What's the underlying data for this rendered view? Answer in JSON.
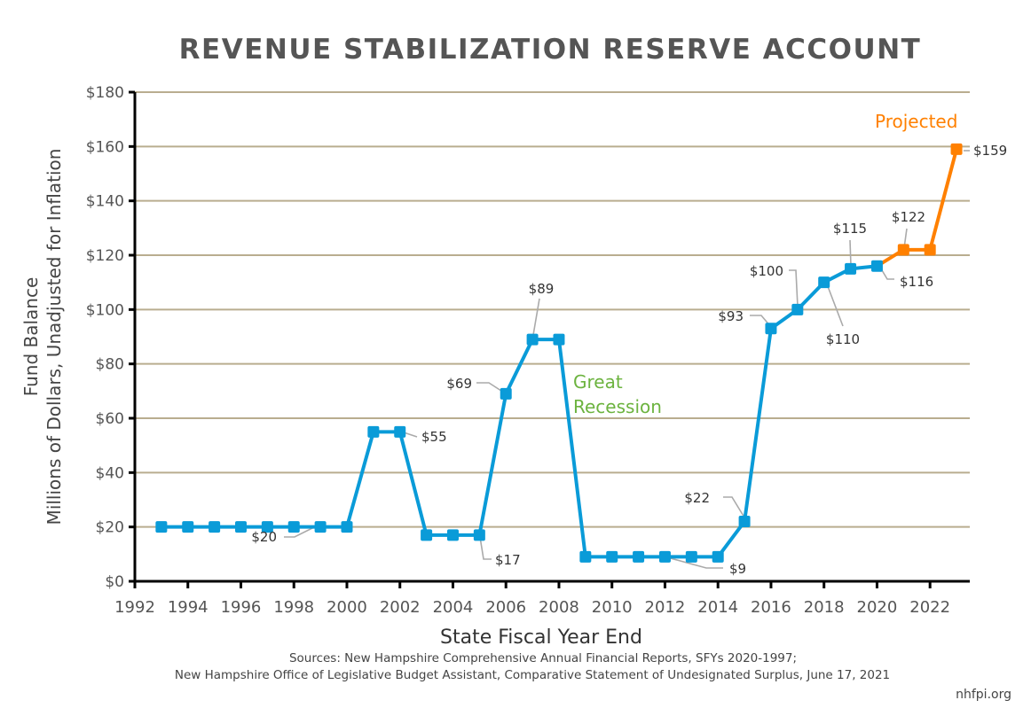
{
  "chart_data": {
    "type": "line",
    "title": "REVENUE STABILIZATION RESERVE ACCOUNT",
    "xlabel": "State Fiscal Year End",
    "ylabel_lines": [
      "Fund Balance",
      "Millions of Dollars, Unadjusted for Inflation"
    ],
    "xlim": [
      1992,
      2023.5
    ],
    "ylim": [
      0,
      180
    ],
    "x_ticks": [
      "1992",
      "1994",
      "1996",
      "1998",
      "2000",
      "2002",
      "2004",
      "2006",
      "2008",
      "2010",
      "2012",
      "2014",
      "2016",
      "2018",
      "2020",
      "2022"
    ],
    "y_ticks": [
      "$0",
      "$20",
      "$40",
      "$60",
      "$80",
      "$100",
      "$120",
      "$140",
      "$160",
      "$180"
    ],
    "grid": "horizontal",
    "series": [
      {
        "color": "#0a9bd8",
        "x": [
          1993,
          1994,
          1995,
          1996,
          1997,
          1998,
          1999,
          2000,
          2001,
          2002,
          2003,
          2004,
          2005,
          2006,
          2007,
          2008,
          2009,
          2010,
          2011,
          2012,
          2013,
          2014,
          2015,
          2016,
          2017,
          2018,
          2019,
          2020
        ],
        "y": [
          20,
          20,
          20,
          20,
          20,
          20,
          20,
          20,
          55,
          55,
          17,
          17,
          17,
          69,
          89,
          89,
          9,
          9,
          9,
          9,
          9,
          9,
          22,
          93,
          100,
          110,
          115,
          116
        ]
      },
      {
        "name": "Projected",
        "color": "#ff8000",
        "x": [
          2020,
          2021,
          2022,
          2023
        ],
        "y": [
          116,
          122,
          122,
          159
        ]
      }
    ],
    "annotations": [
      {
        "text": "Great",
        "color": "#6cb33f"
      },
      {
        "text": "Recession",
        "color": "#6cb33f"
      },
      {
        "text": "Projected",
        "color": "#ff8000"
      }
    ],
    "data_labels": [
      "$20",
      "$55",
      "$17",
      "$69",
      "$89",
      "$9",
      "$22",
      "$93",
      "$100",
      "$110",
      "$115",
      "$116",
      "$122",
      "$159"
    ]
  },
  "sources": [
    "Sources: New Hampshire Comprehensive Annual Financial Reports, SFYs 2020-1997;",
    "New Hampshire Office of Legislative Budget Assistant, Comparative Statement of Undesignated Surplus, June 17, 2021"
  ],
  "credit": "nhfpi.org"
}
